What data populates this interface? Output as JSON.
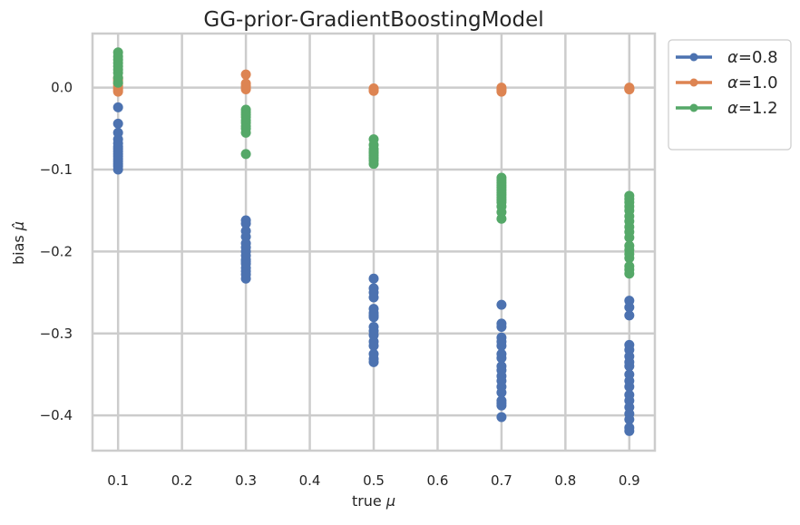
{
  "chart_data": {
    "type": "scatter",
    "title": "GG-prior-GradientBoostingModel",
    "xlabel_text": "true ",
    "xlabel_symbol": "μ",
    "ylabel_text": "bias ",
    "ylabel_symbol": "μ̂",
    "xlim": [
      0.06,
      0.94
    ],
    "ylim": [
      -0.443,
      0.066
    ],
    "xticks": [
      0.1,
      0.2,
      0.3,
      0.4,
      0.5,
      0.6,
      0.7,
      0.8,
      0.9
    ],
    "xtick_labels": [
      "0.1",
      "0.2",
      "0.3",
      "0.4",
      "0.5",
      "0.6",
      "0.7",
      "0.8",
      "0.9"
    ],
    "yticks": [
      0.0,
      -0.1,
      -0.2,
      -0.3,
      -0.4
    ],
    "ytick_labels": [
      "0.0",
      "−0.1",
      "−0.2",
      "−0.3",
      "−0.4"
    ],
    "grid": true,
    "legend_position": "outside-top-right",
    "series": [
      {
        "name": "α=0.8",
        "symbol": "α",
        "value_text": "=0.8",
        "color": "#4c72b0",
        "x": [
          0.1,
          0.1,
          0.1,
          0.1,
          0.1,
          0.1,
          0.1,
          0.1,
          0.1,
          0.1,
          0.1,
          0.1,
          0.1,
          0.1,
          0.1,
          0.3,
          0.3,
          0.3,
          0.3,
          0.3,
          0.3,
          0.3,
          0.3,
          0.3,
          0.3,
          0.3,
          0.3,
          0.3,
          0.3,
          0.3,
          0.5,
          0.5,
          0.5,
          0.5,
          0.5,
          0.5,
          0.5,
          0.5,
          0.5,
          0.5,
          0.5,
          0.5,
          0.5,
          0.5,
          0.5,
          0.5,
          0.7,
          0.7,
          0.7,
          0.7,
          0.7,
          0.7,
          0.7,
          0.7,
          0.7,
          0.7,
          0.7,
          0.7,
          0.7,
          0.7,
          0.7,
          0.7,
          0.7,
          0.7,
          0.9,
          0.9,
          0.9,
          0.9,
          0.9,
          0.9,
          0.9,
          0.9,
          0.9,
          0.9,
          0.9,
          0.9,
          0.9,
          0.9,
          0.9,
          0.9,
          0.9,
          0.9
        ],
        "y": [
          -0.024,
          -0.044,
          -0.055,
          -0.063,
          -0.068,
          -0.072,
          -0.075,
          -0.078,
          -0.081,
          -0.084,
          -0.087,
          -0.09,
          -0.093,
          -0.096,
          -0.1,
          -0.162,
          -0.166,
          -0.175,
          -0.182,
          -0.19,
          -0.195,
          -0.2,
          -0.205,
          -0.21,
          -0.212,
          -0.215,
          -0.22,
          -0.224,
          -0.228,
          -0.233,
          -0.233,
          -0.245,
          -0.25,
          -0.256,
          -0.27,
          -0.275,
          -0.28,
          -0.292,
          -0.297,
          -0.302,
          -0.31,
          -0.315,
          -0.325,
          -0.331,
          -0.335,
          -0.278,
          -0.265,
          -0.288,
          -0.292,
          -0.305,
          -0.31,
          -0.315,
          -0.325,
          -0.33,
          -0.34,
          -0.345,
          -0.352,
          -0.358,
          -0.365,
          -0.372,
          -0.382,
          -0.385,
          -0.388,
          -0.402,
          -0.26,
          -0.268,
          -0.278,
          -0.314,
          -0.32,
          -0.328,
          -0.335,
          -0.34,
          -0.35,
          -0.358,
          -0.365,
          -0.375,
          -0.382,
          -0.39,
          -0.398,
          -0.405,
          -0.415,
          -0.419
        ]
      },
      {
        "name": "α=1.0",
        "symbol": "α",
        "value_text": "=1.0",
        "color": "#dd8452",
        "x": [
          0.1,
          0.1,
          0.1,
          0.1,
          0.1,
          0.1,
          0.1,
          0.1,
          0.3,
          0.3,
          0.3,
          0.3,
          0.3,
          0.5,
          0.5,
          0.5,
          0.5,
          0.7,
          0.7,
          0.7,
          0.7,
          0.9,
          0.9,
          0.9,
          0.9
        ],
        "y": [
          0.012,
          0.008,
          0.005,
          0.002,
          -0.001,
          -0.003,
          -0.005,
          0.01,
          0.016,
          0.005,
          0.002,
          0.0,
          -0.002,
          -0.001,
          -0.002,
          -0.003,
          -0.004,
          0.0,
          -0.002,
          -0.003,
          -0.005,
          0.0,
          -0.001,
          -0.002,
          -0.002
        ]
      },
      {
        "name": "α=1.2",
        "symbol": "α",
        "value_text": "=1.2",
        "color": "#55a868",
        "x": [
          0.1,
          0.1,
          0.1,
          0.1,
          0.1,
          0.1,
          0.1,
          0.1,
          0.1,
          0.3,
          0.3,
          0.3,
          0.3,
          0.3,
          0.3,
          0.3,
          0.3,
          0.3,
          0.3,
          0.5,
          0.5,
          0.5,
          0.5,
          0.5,
          0.5,
          0.5,
          0.5,
          0.5,
          0.7,
          0.7,
          0.7,
          0.7,
          0.7,
          0.7,
          0.7,
          0.7,
          0.7,
          0.7,
          0.7,
          0.7,
          0.7,
          0.7,
          0.9,
          0.9,
          0.9,
          0.9,
          0.9,
          0.9,
          0.9,
          0.9,
          0.9,
          0.9,
          0.9,
          0.9,
          0.9,
          0.9,
          0.9,
          0.9,
          0.9
        ],
        "y": [
          0.043,
          0.038,
          0.034,
          0.03,
          0.026,
          0.022,
          0.018,
          0.012,
          0.006,
          -0.027,
          -0.03,
          -0.033,
          -0.036,
          -0.04,
          -0.043,
          -0.047,
          -0.05,
          -0.055,
          -0.081,
          -0.063,
          -0.07,
          -0.075,
          -0.078,
          -0.08,
          -0.083,
          -0.086,
          -0.089,
          -0.093,
          -0.11,
          -0.113,
          -0.116,
          -0.119,
          -0.122,
          -0.125,
          -0.128,
          -0.131,
          -0.134,
          -0.137,
          -0.14,
          -0.145,
          -0.152,
          -0.16,
          -0.132,
          -0.136,
          -0.14,
          -0.145,
          -0.15,
          -0.157,
          -0.163,
          -0.17,
          -0.176,
          -0.183,
          -0.193,
          -0.198,
          -0.203,
          -0.208,
          -0.218,
          -0.222,
          -0.227
        ]
      }
    ]
  }
}
